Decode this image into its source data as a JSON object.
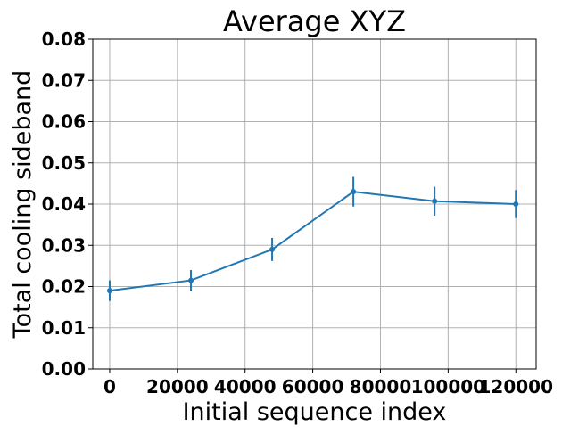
{
  "chart_data": {
    "type": "line",
    "title": "Average XYZ",
    "xlabel": "Initial sequence index",
    "ylabel": "Total cooling sideband",
    "xlim": [
      -5000,
      126000
    ],
    "ylim": [
      0.0,
      0.08
    ],
    "xticks": [
      0,
      20000,
      40000,
      60000,
      80000,
      100000,
      120000
    ],
    "xtick_labels": [
      "0",
      "20000",
      "40000",
      "60000",
      "80000",
      "100000",
      "120000"
    ],
    "yticks": [
      0.0,
      0.01,
      0.02,
      0.03,
      0.04,
      0.05,
      0.06,
      0.07,
      0.08
    ],
    "ytick_labels": [
      "0.00",
      "0.01",
      "0.02",
      "0.03",
      "0.04",
      "0.05",
      "0.06",
      "0.07",
      "0.08"
    ],
    "grid": true,
    "series": [
      {
        "color": "#1f77b4",
        "x": [
          0,
          24000,
          48000,
          72000,
          96000,
          120000
        ],
        "y": [
          0.019,
          0.0215,
          0.029,
          0.043,
          0.0407,
          0.04
        ],
        "yerr": [
          0.0025,
          0.0025,
          0.0028,
          0.0036,
          0.0035,
          0.0034
        ]
      }
    ]
  }
}
